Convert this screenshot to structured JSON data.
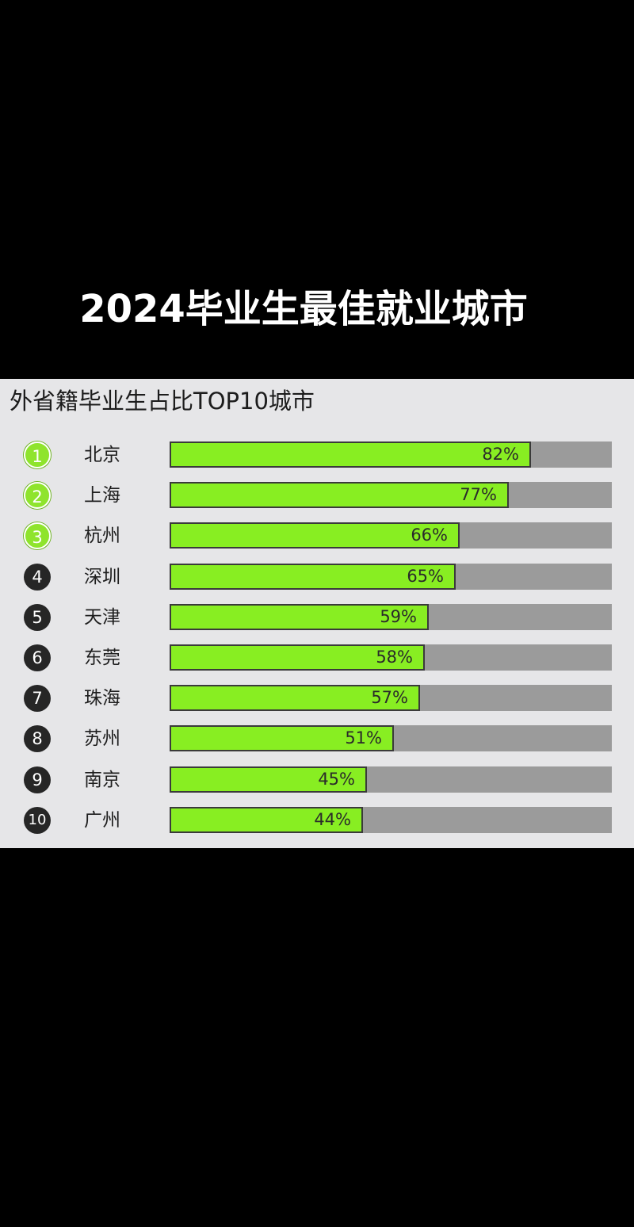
{
  "headline": "2024毕业生最佳就业城市",
  "chart_data": {
    "type": "bar",
    "title": "外省籍毕业生占比TOP10城市",
    "orientation": "horizontal",
    "xlim": [
      0,
      100
    ],
    "grid": false,
    "colors": {
      "fill": "#88ee22",
      "track": "#9b9b9b",
      "rank_top": "#8fe42d",
      "rank_rest": "#262626"
    },
    "items": [
      {
        "rank": "1",
        "city": "北京",
        "value": 82,
        "label": "82%"
      },
      {
        "rank": "2",
        "city": "上海",
        "value": 77,
        "label": "77%"
      },
      {
        "rank": "3",
        "city": "杭州",
        "value": 66,
        "label": "66%"
      },
      {
        "rank": "4",
        "city": "深圳",
        "value": 65,
        "label": "65%"
      },
      {
        "rank": "5",
        "city": "天津",
        "value": 59,
        "label": "59%"
      },
      {
        "rank": "6",
        "city": "东莞",
        "value": 58,
        "label": "58%"
      },
      {
        "rank": "7",
        "city": "珠海",
        "value": 57,
        "label": "57%"
      },
      {
        "rank": "8",
        "city": "苏州",
        "value": 51,
        "label": "51%"
      },
      {
        "rank": "9",
        "city": "南京",
        "value": 45,
        "label": "45%"
      },
      {
        "rank": "10",
        "city": "广州",
        "value": 44,
        "label": "44%"
      }
    ]
  }
}
